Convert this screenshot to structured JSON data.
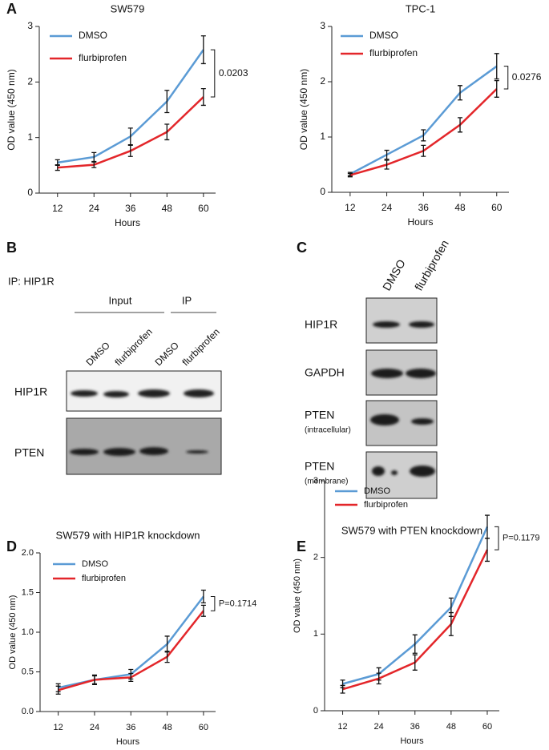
{
  "chart_data": [
    {
      "type": "line",
      "panel": "A",
      "title": "SW579",
      "xlabel": "Hours",
      "ylabel": "OD value (450 nm)",
      "x": [
        12,
        24,
        36,
        48,
        60
      ],
      "xlim": [
        6,
        64
      ],
      "xticks": [
        12,
        24,
        36,
        48,
        60
      ],
      "ylim": [
        0,
        3
      ],
      "yticks": [
        0,
        1,
        2,
        3
      ],
      "annotation": "0.0203",
      "series": [
        {
          "name": "DMSO",
          "color": "#5b9bd5",
          "values": [
            0.55,
            0.65,
            1.02,
            1.65,
            2.58
          ],
          "errors": [
            0.05,
            0.08,
            0.15,
            0.2,
            0.25
          ]
        },
        {
          "name": "flurbiprofen",
          "color": "#e3262a",
          "values": [
            0.46,
            0.51,
            0.76,
            1.1,
            1.73
          ],
          "errors": [
            0.05,
            0.05,
            0.1,
            0.14,
            0.15
          ]
        }
      ]
    },
    {
      "type": "line",
      "title": "TPC-1",
      "xlabel": "Hours",
      "ylabel": "OD value (450 nm)",
      "x": [
        12,
        24,
        36,
        48,
        60
      ],
      "xlim": [
        6,
        64
      ],
      "xticks": [
        12,
        24,
        36,
        48,
        60
      ],
      "ylim": [
        0,
        3
      ],
      "yticks": [
        0,
        1,
        2,
        3
      ],
      "annotation": "0.0276",
      "series": [
        {
          "name": "DMSO",
          "color": "#5b9bd5",
          "values": [
            0.33,
            0.68,
            1.03,
            1.8,
            2.28
          ],
          "errors": [
            0.03,
            0.08,
            0.1,
            0.13,
            0.23
          ]
        },
        {
          "name": "flurbiprofen",
          "color": "#e3262a",
          "values": [
            0.31,
            0.5,
            0.75,
            1.22,
            1.87
          ],
          "errors": [
            0.03,
            0.08,
            0.1,
            0.13,
            0.15
          ]
        }
      ]
    },
    {
      "type": "line",
      "panel": "D",
      "title": "SW579 with HIP1R knockdown",
      "xlabel": "Hours",
      "ylabel": "OD value (450 nm)",
      "x": [
        12,
        24,
        36,
        48,
        60
      ],
      "xlim": [
        6,
        64
      ],
      "xticks": [
        12,
        24,
        36,
        48,
        60
      ],
      "ylim": [
        0,
        2
      ],
      "yticks": [
        {
          "value": 0,
          "label": "0.0"
        },
        0.5,
        {
          "value": 1,
          "label": "1.0"
        },
        1.5,
        {
          "value": 2,
          "label": "2.0"
        }
      ],
      "annotation": "P=0.1714",
      "series": [
        {
          "name": "DMSO",
          "color": "#5b9bd5",
          "values": [
            0.3,
            0.4,
            0.47,
            0.85,
            1.45
          ],
          "errors": [
            0.05,
            0.06,
            0.06,
            0.1,
            0.08
          ]
        },
        {
          "name": "flurbiprofen",
          "color": "#e3262a",
          "values": [
            0.27,
            0.4,
            0.43,
            0.69,
            1.27
          ],
          "errors": [
            0.05,
            0.05,
            0.05,
            0.07,
            0.07
          ]
        }
      ]
    },
    {
      "type": "line",
      "panel": "E",
      "title": "SW579 with PTEN knockdown",
      "xlabel": "Hours",
      "ylabel": "OD value (450 nm)",
      "x": [
        12,
        24,
        36,
        48,
        60
      ],
      "xlim": [
        6,
        64
      ],
      "xticks": [
        12,
        24,
        36,
        48,
        60
      ],
      "ylim": [
        0,
        3
      ],
      "yticks": [
        0,
        1,
        2,
        3
      ],
      "annotation": "P=0.1179",
      "series": [
        {
          "name": "DMSO",
          "color": "#5b9bd5",
          "values": [
            0.35,
            0.48,
            0.87,
            1.35,
            2.4
          ],
          "errors": [
            0.05,
            0.08,
            0.12,
            0.12,
            0.15
          ]
        },
        {
          "name": "flurbiprofen",
          "color": "#e3262a",
          "values": [
            0.28,
            0.42,
            0.63,
            1.13,
            2.1
          ],
          "errors": [
            0.05,
            0.07,
            0.1,
            0.15,
            0.15
          ]
        }
      ]
    }
  ],
  "blots": {
    "B": {
      "panel": "B",
      "title": "IP: HIP1R",
      "groups": [
        "Input",
        "IP"
      ],
      "lanes": [
        "DMSO",
        "flurbiprofen",
        "DMSO",
        "flurbiprofen"
      ],
      "rows": [
        "HIP1R",
        "PTEN"
      ]
    },
    "C": {
      "panel": "C",
      "lanes": [
        "DMSO",
        "flurbiprofen"
      ],
      "rows": [
        {
          "label": "HIP1R"
        },
        {
          "label": "GAPDH"
        },
        {
          "label": "PTEN",
          "sublabel": "(intracellular)"
        },
        {
          "label": "PTEN",
          "sublabel": "(membrane)"
        }
      ]
    }
  }
}
